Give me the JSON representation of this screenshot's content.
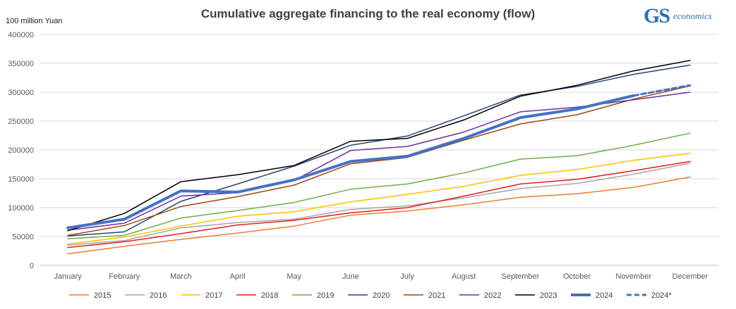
{
  "chart_data": {
    "type": "line",
    "title": "Cumulative aggregate financing to the real economy (flow)",
    "ylabel": "100 million Yuan",
    "xlabel": "",
    "ylim": [
      0,
      400000
    ],
    "yticks": [
      0,
      50000,
      100000,
      150000,
      200000,
      250000,
      300000,
      350000,
      400000
    ],
    "grid": true,
    "legend_position": "bottom",
    "categories": [
      "January",
      "February",
      "March",
      "April",
      "May",
      "June",
      "July",
      "August",
      "September",
      "October",
      "November",
      "December"
    ],
    "series": [
      {
        "name": "2015",
        "color": "#ed7d31",
        "width": 1.5,
        "values": [
          20000,
          33000,
          45000,
          56000,
          68000,
          87000,
          94000,
          105000,
          118000,
          124000,
          135000,
          153000
        ]
      },
      {
        "name": "2016",
        "color": "#a5a5a5",
        "width": 1.5,
        "values": [
          35000,
          43000,
          65000,
          74000,
          80000,
          97000,
          103000,
          117000,
          133000,
          142000,
          158000,
          177000
        ]
      },
      {
        "name": "2017",
        "color": "#ffc000",
        "width": 1.5,
        "values": [
          37000,
          49000,
          68000,
          85000,
          93000,
          110000,
          123000,
          137000,
          156000,
          166000,
          182000,
          194000
        ]
      },
      {
        "name": "2018",
        "color": "#e21d1d",
        "width": 1.5,
        "values": [
          31000,
          41000,
          55000,
          70000,
          78000,
          91000,
          100000,
          120000,
          141000,
          149000,
          164000,
          180000
        ]
      },
      {
        "name": "2019",
        "color": "#70ad47",
        "width": 1.5,
        "values": [
          46000,
          52000,
          82000,
          95000,
          109000,
          132000,
          141000,
          160000,
          184000,
          190000,
          208000,
          229000
        ]
      },
      {
        "name": "2020",
        "color": "#264478",
        "width": 1.5,
        "values": [
          51000,
          58000,
          111000,
          141000,
          172000,
          208000,
          224000,
          259000,
          295000,
          310000,
          331000,
          347000
        ]
      },
      {
        "name": "2021",
        "color": "#9e480e",
        "width": 1.5,
        "values": [
          52000,
          69000,
          102000,
          119000,
          139000,
          176000,
          187000,
          217000,
          245000,
          261000,
          288000,
          311000
        ]
      },
      {
        "name": "2022",
        "color": "#7030a0",
        "width": 1.5,
        "values": [
          61000,
          73000,
          120000,
          126000,
          147000,
          199000,
          206000,
          231000,
          266000,
          274000,
          287000,
          300000
        ]
      },
      {
        "name": "2023",
        "color": "#000000",
        "width": 1.5,
        "values": [
          60000,
          90000,
          145000,
          157000,
          173000,
          215000,
          220000,
          252000,
          293000,
          312000,
          337000,
          355000
        ]
      },
      {
        "name": "2024",
        "color": "#4472c4",
        "width": 4,
        "values": [
          65000,
          80000,
          129000,
          127000,
          148000,
          180000,
          189000,
          220000,
          256000,
          271000,
          294000,
          null
        ]
      },
      {
        "name": "2024*",
        "color": "#4472c4",
        "width": 3,
        "dashed": true,
        "values": [
          null,
          null,
          null,
          null,
          null,
          null,
          null,
          null,
          null,
          null,
          294000,
          312000
        ]
      }
    ]
  },
  "logo": {
    "brand": "GS",
    "sub": "economics"
  }
}
